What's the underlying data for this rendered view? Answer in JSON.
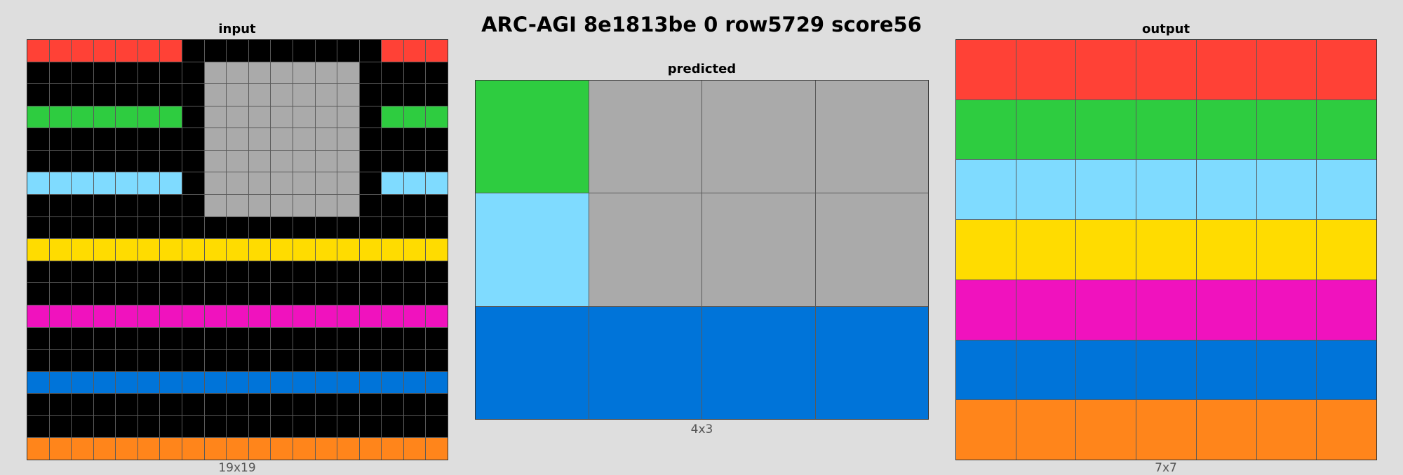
{
  "title": "ARC-AGI 8e1813be 0 row5729 score56",
  "palette": {
    "0": "#000000",
    "1": "#0074d9",
    "2": "#ff4136",
    "3": "#2ecc40",
    "4": "#ffdc00",
    "5": "#aaaaaa",
    "6": "#f012be",
    "7": "#ff851b",
    "8": "#7fdbff"
  },
  "panels": {
    "input": {
      "title": "input",
      "caption": "19x19",
      "grid": [
        [
          2,
          2,
          2,
          2,
          2,
          2,
          2,
          0,
          0,
          0,
          0,
          0,
          0,
          0,
          0,
          0,
          2,
          2,
          2
        ],
        [
          0,
          0,
          0,
          0,
          0,
          0,
          0,
          0,
          5,
          5,
          5,
          5,
          5,
          5,
          5,
          0,
          0,
          0,
          0
        ],
        [
          0,
          0,
          0,
          0,
          0,
          0,
          0,
          0,
          5,
          5,
          5,
          5,
          5,
          5,
          5,
          0,
          0,
          0,
          0
        ],
        [
          3,
          3,
          3,
          3,
          3,
          3,
          3,
          0,
          5,
          5,
          5,
          5,
          5,
          5,
          5,
          0,
          3,
          3,
          3
        ],
        [
          0,
          0,
          0,
          0,
          0,
          0,
          0,
          0,
          5,
          5,
          5,
          5,
          5,
          5,
          5,
          0,
          0,
          0,
          0
        ],
        [
          0,
          0,
          0,
          0,
          0,
          0,
          0,
          0,
          5,
          5,
          5,
          5,
          5,
          5,
          5,
          0,
          0,
          0,
          0
        ],
        [
          8,
          8,
          8,
          8,
          8,
          8,
          8,
          0,
          5,
          5,
          5,
          5,
          5,
          5,
          5,
          0,
          8,
          8,
          8
        ],
        [
          0,
          0,
          0,
          0,
          0,
          0,
          0,
          0,
          5,
          5,
          5,
          5,
          5,
          5,
          5,
          0,
          0,
          0,
          0
        ],
        [
          0,
          0,
          0,
          0,
          0,
          0,
          0,
          0,
          0,
          0,
          0,
          0,
          0,
          0,
          0,
          0,
          0,
          0,
          0
        ],
        [
          4,
          4,
          4,
          4,
          4,
          4,
          4,
          4,
          4,
          4,
          4,
          4,
          4,
          4,
          4,
          4,
          4,
          4,
          4
        ],
        [
          0,
          0,
          0,
          0,
          0,
          0,
          0,
          0,
          0,
          0,
          0,
          0,
          0,
          0,
          0,
          0,
          0,
          0,
          0
        ],
        [
          0,
          0,
          0,
          0,
          0,
          0,
          0,
          0,
          0,
          0,
          0,
          0,
          0,
          0,
          0,
          0,
          0,
          0,
          0
        ],
        [
          6,
          6,
          6,
          6,
          6,
          6,
          6,
          6,
          6,
          6,
          6,
          6,
          6,
          6,
          6,
          6,
          6,
          6,
          6
        ],
        [
          0,
          0,
          0,
          0,
          0,
          0,
          0,
          0,
          0,
          0,
          0,
          0,
          0,
          0,
          0,
          0,
          0,
          0,
          0
        ],
        [
          0,
          0,
          0,
          0,
          0,
          0,
          0,
          0,
          0,
          0,
          0,
          0,
          0,
          0,
          0,
          0,
          0,
          0,
          0
        ],
        [
          1,
          1,
          1,
          1,
          1,
          1,
          1,
          1,
          1,
          1,
          1,
          1,
          1,
          1,
          1,
          1,
          1,
          1,
          1
        ],
        [
          0,
          0,
          0,
          0,
          0,
          0,
          0,
          0,
          0,
          0,
          0,
          0,
          0,
          0,
          0,
          0,
          0,
          0,
          0
        ],
        [
          0,
          0,
          0,
          0,
          0,
          0,
          0,
          0,
          0,
          0,
          0,
          0,
          0,
          0,
          0,
          0,
          0,
          0,
          0
        ],
        [
          7,
          7,
          7,
          7,
          7,
          7,
          7,
          7,
          7,
          7,
          7,
          7,
          7,
          7,
          7,
          7,
          7,
          7,
          7
        ]
      ]
    },
    "predicted": {
      "title": "predicted",
      "caption": "4x3",
      "grid": [
        [
          3,
          5,
          5,
          5
        ],
        [
          8,
          5,
          5,
          5
        ],
        [
          1,
          1,
          1,
          1
        ]
      ]
    },
    "output": {
      "title": "output",
      "caption": "7x7",
      "grid": [
        [
          2,
          2,
          2,
          2,
          2,
          2,
          2
        ],
        [
          3,
          3,
          3,
          3,
          3,
          3,
          3
        ],
        [
          8,
          8,
          8,
          8,
          8,
          8,
          8
        ],
        [
          4,
          4,
          4,
          4,
          4,
          4,
          4
        ],
        [
          6,
          6,
          6,
          6,
          6,
          6,
          6
        ],
        [
          1,
          1,
          1,
          1,
          1,
          1,
          1
        ],
        [
          7,
          7,
          7,
          7,
          7,
          7,
          7
        ]
      ]
    }
  }
}
